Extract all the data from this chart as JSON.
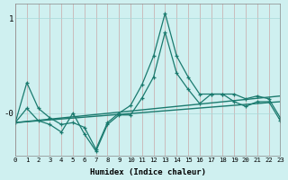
{
  "xlabel": "Humidex (Indice chaleur)",
  "background_color": "#cff0f0",
  "grid_color": "#a8d8d8",
  "line_color": "#1a7a6e",
  "spine_color": "#888888",
  "xlim": [
    0,
    23
  ],
  "ylim": [
    -0.45,
    1.15
  ],
  "yticks": [
    0.0,
    1.0
  ],
  "ytick_labels": [
    "-0",
    "1"
  ],
  "xticks": [
    0,
    1,
    2,
    3,
    4,
    5,
    6,
    7,
    8,
    9,
    10,
    11,
    12,
    13,
    14,
    15,
    16,
    17,
    18,
    19,
    20,
    21,
    22,
    23
  ],
  "line1_x": [
    0,
    1,
    2,
    3,
    4,
    5,
    6,
    7,
    8,
    9,
    10,
    11,
    12,
    13,
    14,
    15,
    16,
    17,
    18,
    19,
    20,
    21,
    22,
    23
  ],
  "line1_y": [
    -0.1,
    0.32,
    0.05,
    -0.05,
    -0.12,
    -0.1,
    -0.15,
    -0.38,
    -0.1,
    0.0,
    0.08,
    0.3,
    0.6,
    1.05,
    0.6,
    0.38,
    0.2,
    0.2,
    0.2,
    0.2,
    0.15,
    0.18,
    0.15,
    -0.05
  ],
  "line2_x": [
    0,
    1,
    2,
    3,
    4,
    5,
    6,
    7,
    8,
    9,
    10,
    11,
    12,
    13,
    14,
    15,
    16,
    17,
    18,
    19,
    20,
    21,
    22,
    23
  ],
  "line2_y": [
    -0.1,
    0.05,
    -0.08,
    -0.12,
    -0.2,
    0.0,
    -0.22,
    -0.4,
    -0.12,
    -0.02,
    -0.02,
    0.16,
    0.38,
    0.85,
    0.42,
    0.25,
    0.1,
    0.2,
    0.2,
    0.12,
    0.07,
    0.12,
    0.12,
    -0.08
  ],
  "trend1_x": [
    0,
    23
  ],
  "trend1_y": [
    -0.1,
    0.18
  ],
  "trend2_x": [
    0,
    23
  ],
  "trend2_y": [
    -0.1,
    0.12
  ]
}
